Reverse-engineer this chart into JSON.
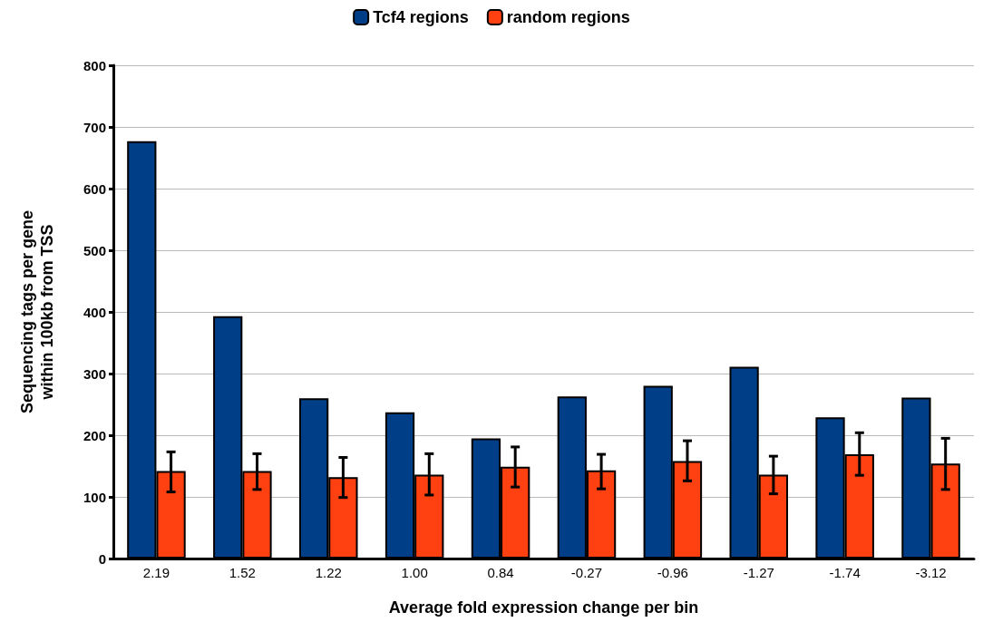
{
  "chart_data": {
    "type": "bar",
    "xlabel": "Average fold expression change per bin",
    "ylabel": "Sequencing tags per gene\nwithin 100kb from TSS",
    "categories": [
      "2.19",
      "1.52",
      "1.22",
      "1.00",
      "0.84",
      "-0.27",
      "-0.96",
      "-1.27",
      "-1.74",
      "-3.12"
    ],
    "series": [
      {
        "name": "Tcf4 regions",
        "color": "#003f87",
        "values": [
          677,
          393,
          260,
          237,
          195,
          263,
          280,
          311,
          229,
          261
        ]
      },
      {
        "name": "random regions",
        "color": "#ff4010",
        "values": [
          142,
          142,
          132,
          136,
          149,
          143,
          158,
          136,
          169,
          154
        ],
        "errors": [
          [
            108,
            173
          ],
          [
            112,
            170
          ],
          [
            99,
            164
          ],
          [
            103,
            170
          ],
          [
            116,
            181
          ],
          [
            113,
            169
          ],
          [
            126,
            191
          ],
          [
            105,
            166
          ],
          [
            135,
            204
          ],
          [
            112,
            195
          ]
        ]
      }
    ],
    "ylim": [
      0,
      800
    ],
    "yticks": [
      0,
      100,
      200,
      300,
      400,
      500,
      600,
      700,
      800
    ],
    "grid": "y",
    "legend": "top"
  }
}
